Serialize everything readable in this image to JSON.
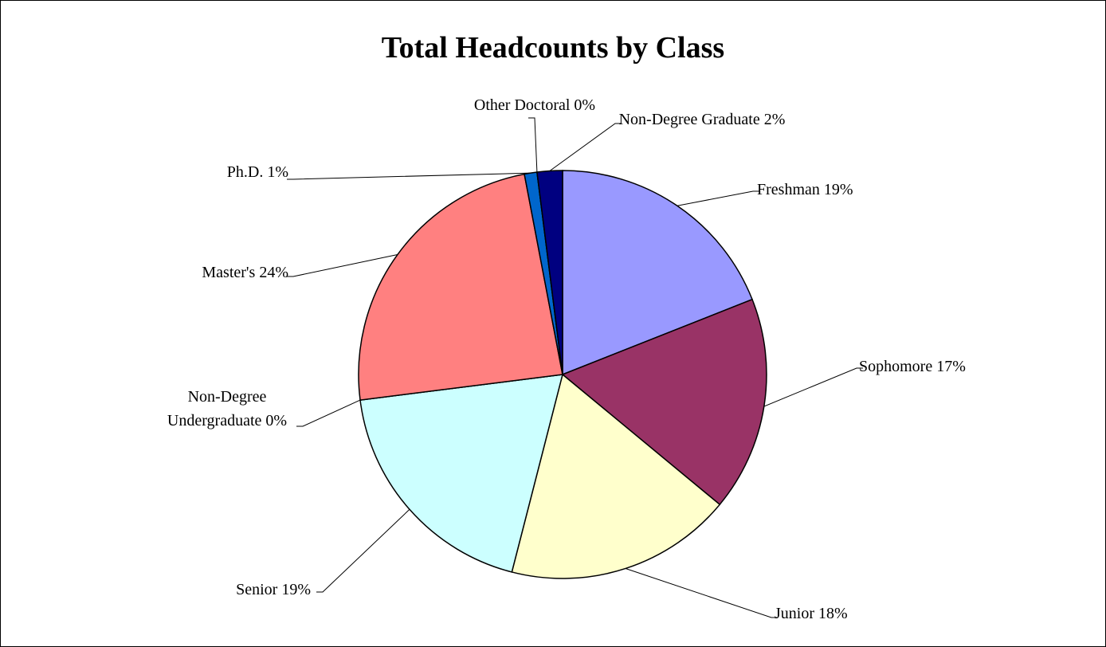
{
  "chart_data": {
    "type": "pie",
    "title": "Total Headcounts by Class",
    "categories": [
      "Freshman",
      "Sophomore",
      "Junior",
      "Senior",
      "Non-Degree Undergraduate",
      "Master's",
      "Ph.D.",
      "Other Doctoral",
      "Non-Degree Graduate"
    ],
    "values": [
      19,
      17,
      18,
      19,
      0,
      24,
      1,
      0,
      2
    ],
    "value_labels": [
      "19%",
      "17%",
      "18%",
      "19%",
      "0%",
      "24%",
      "1%",
      "0%",
      "2%"
    ],
    "colors": [
      "#9999ff",
      "#993366",
      "#ffffcc",
      "#ccffff",
      "#660066",
      "#ff8080",
      "#0066cc",
      "#ccccff",
      "#000080"
    ]
  }
}
